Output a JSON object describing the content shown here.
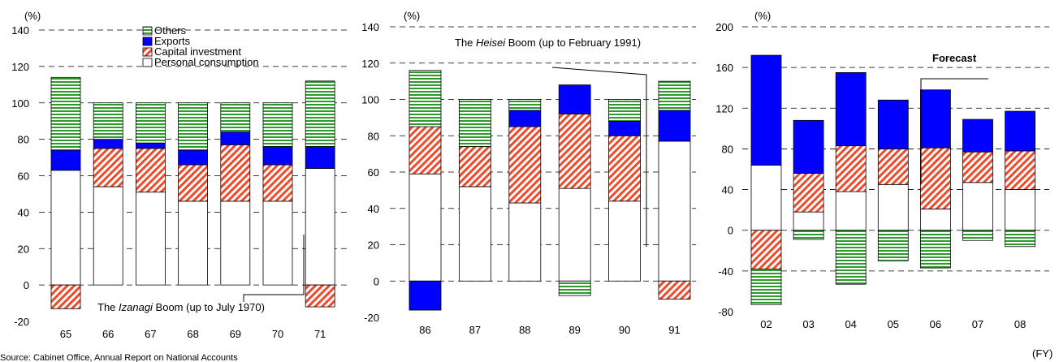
{
  "colors": {
    "personal_consumption": "#ffffff",
    "capital_investment_stripe": "#f04a2a",
    "exports": "#0000ff",
    "others_stripe": "#2d9a2d",
    "gridline": "#000000"
  },
  "legend": {
    "entries": [
      "Others",
      "Exports",
      "Capital investment",
      "Personal consumption"
    ]
  },
  "source_note": "Source: Cabinet Office, Annual Report on National Accounts",
  "fy_label": "(FY)",
  "chart_data": [
    {
      "type": "bar",
      "stacked": true,
      "unit_label": "(%)",
      "ylim": [
        -20,
        140
      ],
      "yticks": [
        -20,
        0,
        20,
        40,
        60,
        80,
        100,
        120,
        140
      ],
      "grid": "dashed horizontal",
      "categories": [
        "65",
        "66",
        "67",
        "68",
        "69",
        "70",
        "71"
      ],
      "series": [
        {
          "name": "Personal consumption",
          "values": [
            63,
            54,
            51,
            46,
            46,
            46,
            64
          ]
        },
        {
          "name": "Capital investment",
          "values": [
            -13,
            21,
            24,
            20,
            31,
            20,
            -12
          ]
        },
        {
          "name": "Exports",
          "values": [
            11,
            5,
            3,
            8,
            7,
            10,
            12
          ]
        },
        {
          "name": "Others",
          "values": [
            40,
            20,
            22,
            26,
            16,
            24,
            36
          ]
        }
      ],
      "annotation": {
        "prefix": "The ",
        "italic": "Izanagi",
        "suffix": " Boom (up to July 1970)"
      }
    },
    {
      "type": "bar",
      "stacked": true,
      "unit_label": "(%)",
      "ylim": [
        -20,
        140
      ],
      "yticks": [
        -20,
        0,
        20,
        40,
        60,
        80,
        100,
        120,
        140
      ],
      "grid": "dashed horizontal",
      "categories": [
        "86",
        "87",
        "88",
        "89",
        "90",
        "91"
      ],
      "series": [
        {
          "name": "Personal consumption",
          "values": [
            59,
            52,
            43,
            51,
            44,
            77
          ]
        },
        {
          "name": "Capital investment",
          "values": [
            26,
            22,
            42,
            41,
            36,
            -10
          ]
        },
        {
          "name": "Exports",
          "values": [
            -16,
            0,
            9,
            16,
            8,
            17
          ]
        },
        {
          "name": "Others",
          "values": [
            31,
            26,
            6,
            -8,
            12,
            16
          ]
        }
      ],
      "annotation": {
        "prefix": "The ",
        "italic": "Heisei",
        "suffix": " Boom (up to February 1991)"
      }
    },
    {
      "type": "bar",
      "stacked": true,
      "unit_label": "(%)",
      "ylim": [
        -80,
        200
      ],
      "yticks": [
        -80,
        -40,
        0,
        40,
        80,
        120,
        160,
        200
      ],
      "grid": "dashed horizontal",
      "categories": [
        "02",
        "03",
        "04",
        "05",
        "06",
        "07",
        "08"
      ],
      "series": [
        {
          "name": "Personal consumption",
          "values": [
            64,
            18,
            38,
            45,
            21,
            47,
            40
          ]
        },
        {
          "name": "Capital investment",
          "values": [
            -38,
            38,
            45,
            35,
            60,
            30,
            38
          ]
        },
        {
          "name": "Exports",
          "values": [
            108,
            52,
            72,
            48,
            57,
            32,
            39
          ]
        },
        {
          "name": "Others",
          "values": [
            -35,
            -9,
            -53,
            -30,
            -37,
            -10,
            -16
          ]
        }
      ],
      "annotation": {
        "text": "Forecast"
      }
    }
  ]
}
